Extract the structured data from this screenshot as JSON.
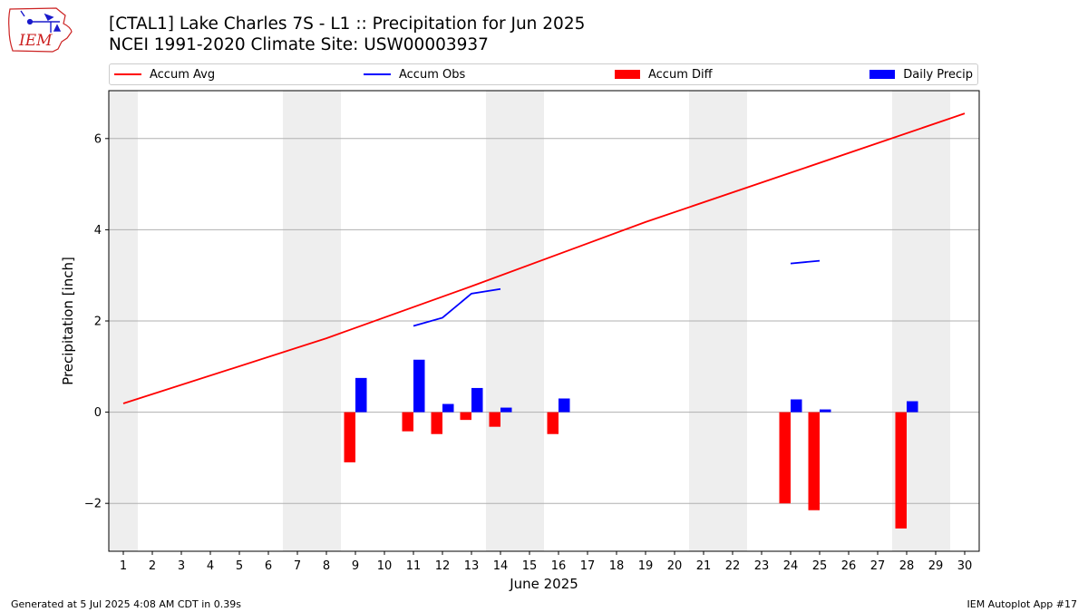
{
  "header": {
    "title_line1": "[CTAL1] Lake Charles 7S - L1 :: Precipitation for Jun 2025",
    "title_line2": "NCEI 1991-2020 Climate Site: USW00003937"
  },
  "logo": {
    "text": "IEM",
    "icon": "iem-iowa-logo",
    "color": "#cc2222"
  },
  "legend": [
    {
      "label": "Accum Avg",
      "kind": "line",
      "color": "#ff0000"
    },
    {
      "label": "Accum Obs",
      "kind": "line",
      "color": "#0000ff"
    },
    {
      "label": "Accum Diff",
      "kind": "patch",
      "color": "#ff0000"
    },
    {
      "label": "Daily Precip",
      "kind": "patch",
      "color": "#0000ff"
    }
  ],
  "footer": {
    "left": "Generated at 5 Jul 2025 4:08 AM CDT in 0.39s",
    "right": "IEM Autoplot App #17"
  },
  "chart_data": {
    "type": "bar",
    "xlabel": "June 2025",
    "ylabel": "Precipitation [inch]",
    "xlim": [
      0.5,
      30.5
    ],
    "ylim": [
      -3.05,
      7.05
    ],
    "yticks": [
      -2,
      0,
      2,
      4,
      6
    ],
    "ytick_labels": [
      "−2",
      "0",
      "2",
      "4",
      "6"
    ],
    "x": [
      1,
      2,
      3,
      4,
      5,
      6,
      7,
      8,
      9,
      10,
      11,
      12,
      13,
      14,
      15,
      16,
      17,
      18,
      19,
      20,
      21,
      22,
      23,
      24,
      25,
      26,
      27,
      28,
      29,
      30
    ],
    "grid": true,
    "weekend_shading": [
      [
        0.5,
        1.5
      ],
      [
        6.5,
        8.5
      ],
      [
        13.5,
        15.5
      ],
      [
        20.5,
        22.5
      ],
      [
        27.5,
        29.5
      ]
    ],
    "shading_color": "#eeeeee",
    "series": [
      {
        "name": "Accum Avg",
        "type": "line",
        "color": "#ff0000",
        "x": [
          1,
          8,
          13,
          19,
          24,
          27,
          30
        ],
        "values": [
          0.19,
          1.62,
          2.76,
          4.17,
          5.25,
          5.9,
          6.55
        ]
      },
      {
        "name": "Accum Obs",
        "type": "line",
        "color": "#0000ff",
        "segments": [
          {
            "x": [
              11,
              12,
              13,
              14
            ],
            "values": [
              1.89,
              2.07,
              2.6,
              2.7
            ]
          },
          {
            "x": [
              24,
              25
            ],
            "values": [
              3.26,
              3.32
            ]
          }
        ]
      },
      {
        "name": "Accum Diff",
        "type": "bar",
        "color": "#ff0000",
        "x": [
          9,
          11,
          12,
          13,
          14,
          16,
          24,
          25,
          28
        ],
        "values": [
          -1.1,
          -0.42,
          -0.48,
          -0.17,
          -0.32,
          -0.48,
          -2.0,
          -2.15,
          -2.55
        ]
      },
      {
        "name": "Daily Precip",
        "type": "bar",
        "color": "#0000ff",
        "x": [
          9,
          11,
          12,
          13,
          14,
          16,
          24,
          25,
          28
        ],
        "values": [
          0.75,
          1.15,
          0.18,
          0.53,
          0.1,
          0.3,
          0.28,
          0.06,
          0.24
        ]
      }
    ]
  }
}
